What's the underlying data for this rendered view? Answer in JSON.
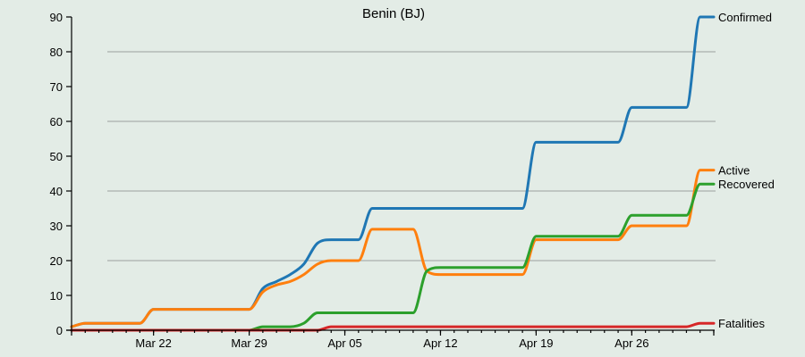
{
  "chart_data": {
    "type": "line",
    "title": "Benin (BJ)",
    "xlabel": "",
    "ylabel": "",
    "x_start": "2020-03-16",
    "ylim": [
      0,
      90
    ],
    "y_ticks": [
      0,
      10,
      20,
      30,
      40,
      50,
      60,
      70,
      80,
      90
    ],
    "x_ticks": [
      {
        "date": "2020-03-22",
        "label": "Mar 22"
      },
      {
        "date": "2020-03-29",
        "label": "Mar 29"
      },
      {
        "date": "2020-04-05",
        "label": "Apr 05"
      },
      {
        "date": "2020-04-12",
        "label": "Apr 12"
      },
      {
        "date": "2020-04-19",
        "label": "Apr 19"
      },
      {
        "date": "2020-04-26",
        "label": "Apr 26"
      }
    ],
    "grid": "horizontal",
    "series": [
      {
        "name": "Confirmed",
        "color": "#1f77b4",
        "values": [
          1,
          2,
          2,
          2,
          2,
          2,
          6,
          6,
          6,
          6,
          6,
          6,
          6,
          6,
          12,
          14,
          16,
          19,
          25,
          26,
          26,
          26,
          35,
          35,
          35,
          35,
          35,
          35,
          35,
          35,
          35,
          35,
          35,
          35,
          54,
          54,
          54,
          54,
          54,
          54,
          54,
          64,
          64,
          64,
          64,
          64,
          90,
          90
        ]
      },
      {
        "name": "Active",
        "color": "#ff7f0e",
        "values": [
          1,
          2,
          2,
          2,
          2,
          2,
          6,
          6,
          6,
          6,
          6,
          6,
          6,
          6,
          11,
          13,
          14,
          16,
          19,
          20,
          20,
          20,
          29,
          29,
          29,
          29,
          17,
          16,
          16,
          16,
          16,
          16,
          16,
          16,
          26,
          26,
          26,
          26,
          26,
          26,
          26,
          30,
          30,
          30,
          30,
          30,
          46,
          46
        ]
      },
      {
        "name": "Recovered",
        "color": "#2ca02c",
        "values": [
          0,
          0,
          0,
          0,
          0,
          0,
          0,
          0,
          0,
          0,
          0,
          0,
          0,
          0,
          1,
          1,
          1,
          2,
          5,
          5,
          5,
          5,
          5,
          5,
          5,
          5,
          17,
          18,
          18,
          18,
          18,
          18,
          18,
          18,
          27,
          27,
          27,
          27,
          27,
          27,
          27,
          33,
          33,
          33,
          33,
          33,
          42,
          42
        ]
      },
      {
        "name": "Fatalities",
        "color": "#d62728",
        "values": [
          0,
          0,
          0,
          0,
          0,
          0,
          0,
          0,
          0,
          0,
          0,
          0,
          0,
          0,
          0,
          0,
          0,
          0,
          0,
          1,
          1,
          1,
          1,
          1,
          1,
          1,
          1,
          1,
          1,
          1,
          1,
          1,
          1,
          1,
          1,
          1,
          1,
          1,
          1,
          1,
          1,
          1,
          1,
          1,
          1,
          1,
          2,
          2
        ]
      }
    ]
  }
}
